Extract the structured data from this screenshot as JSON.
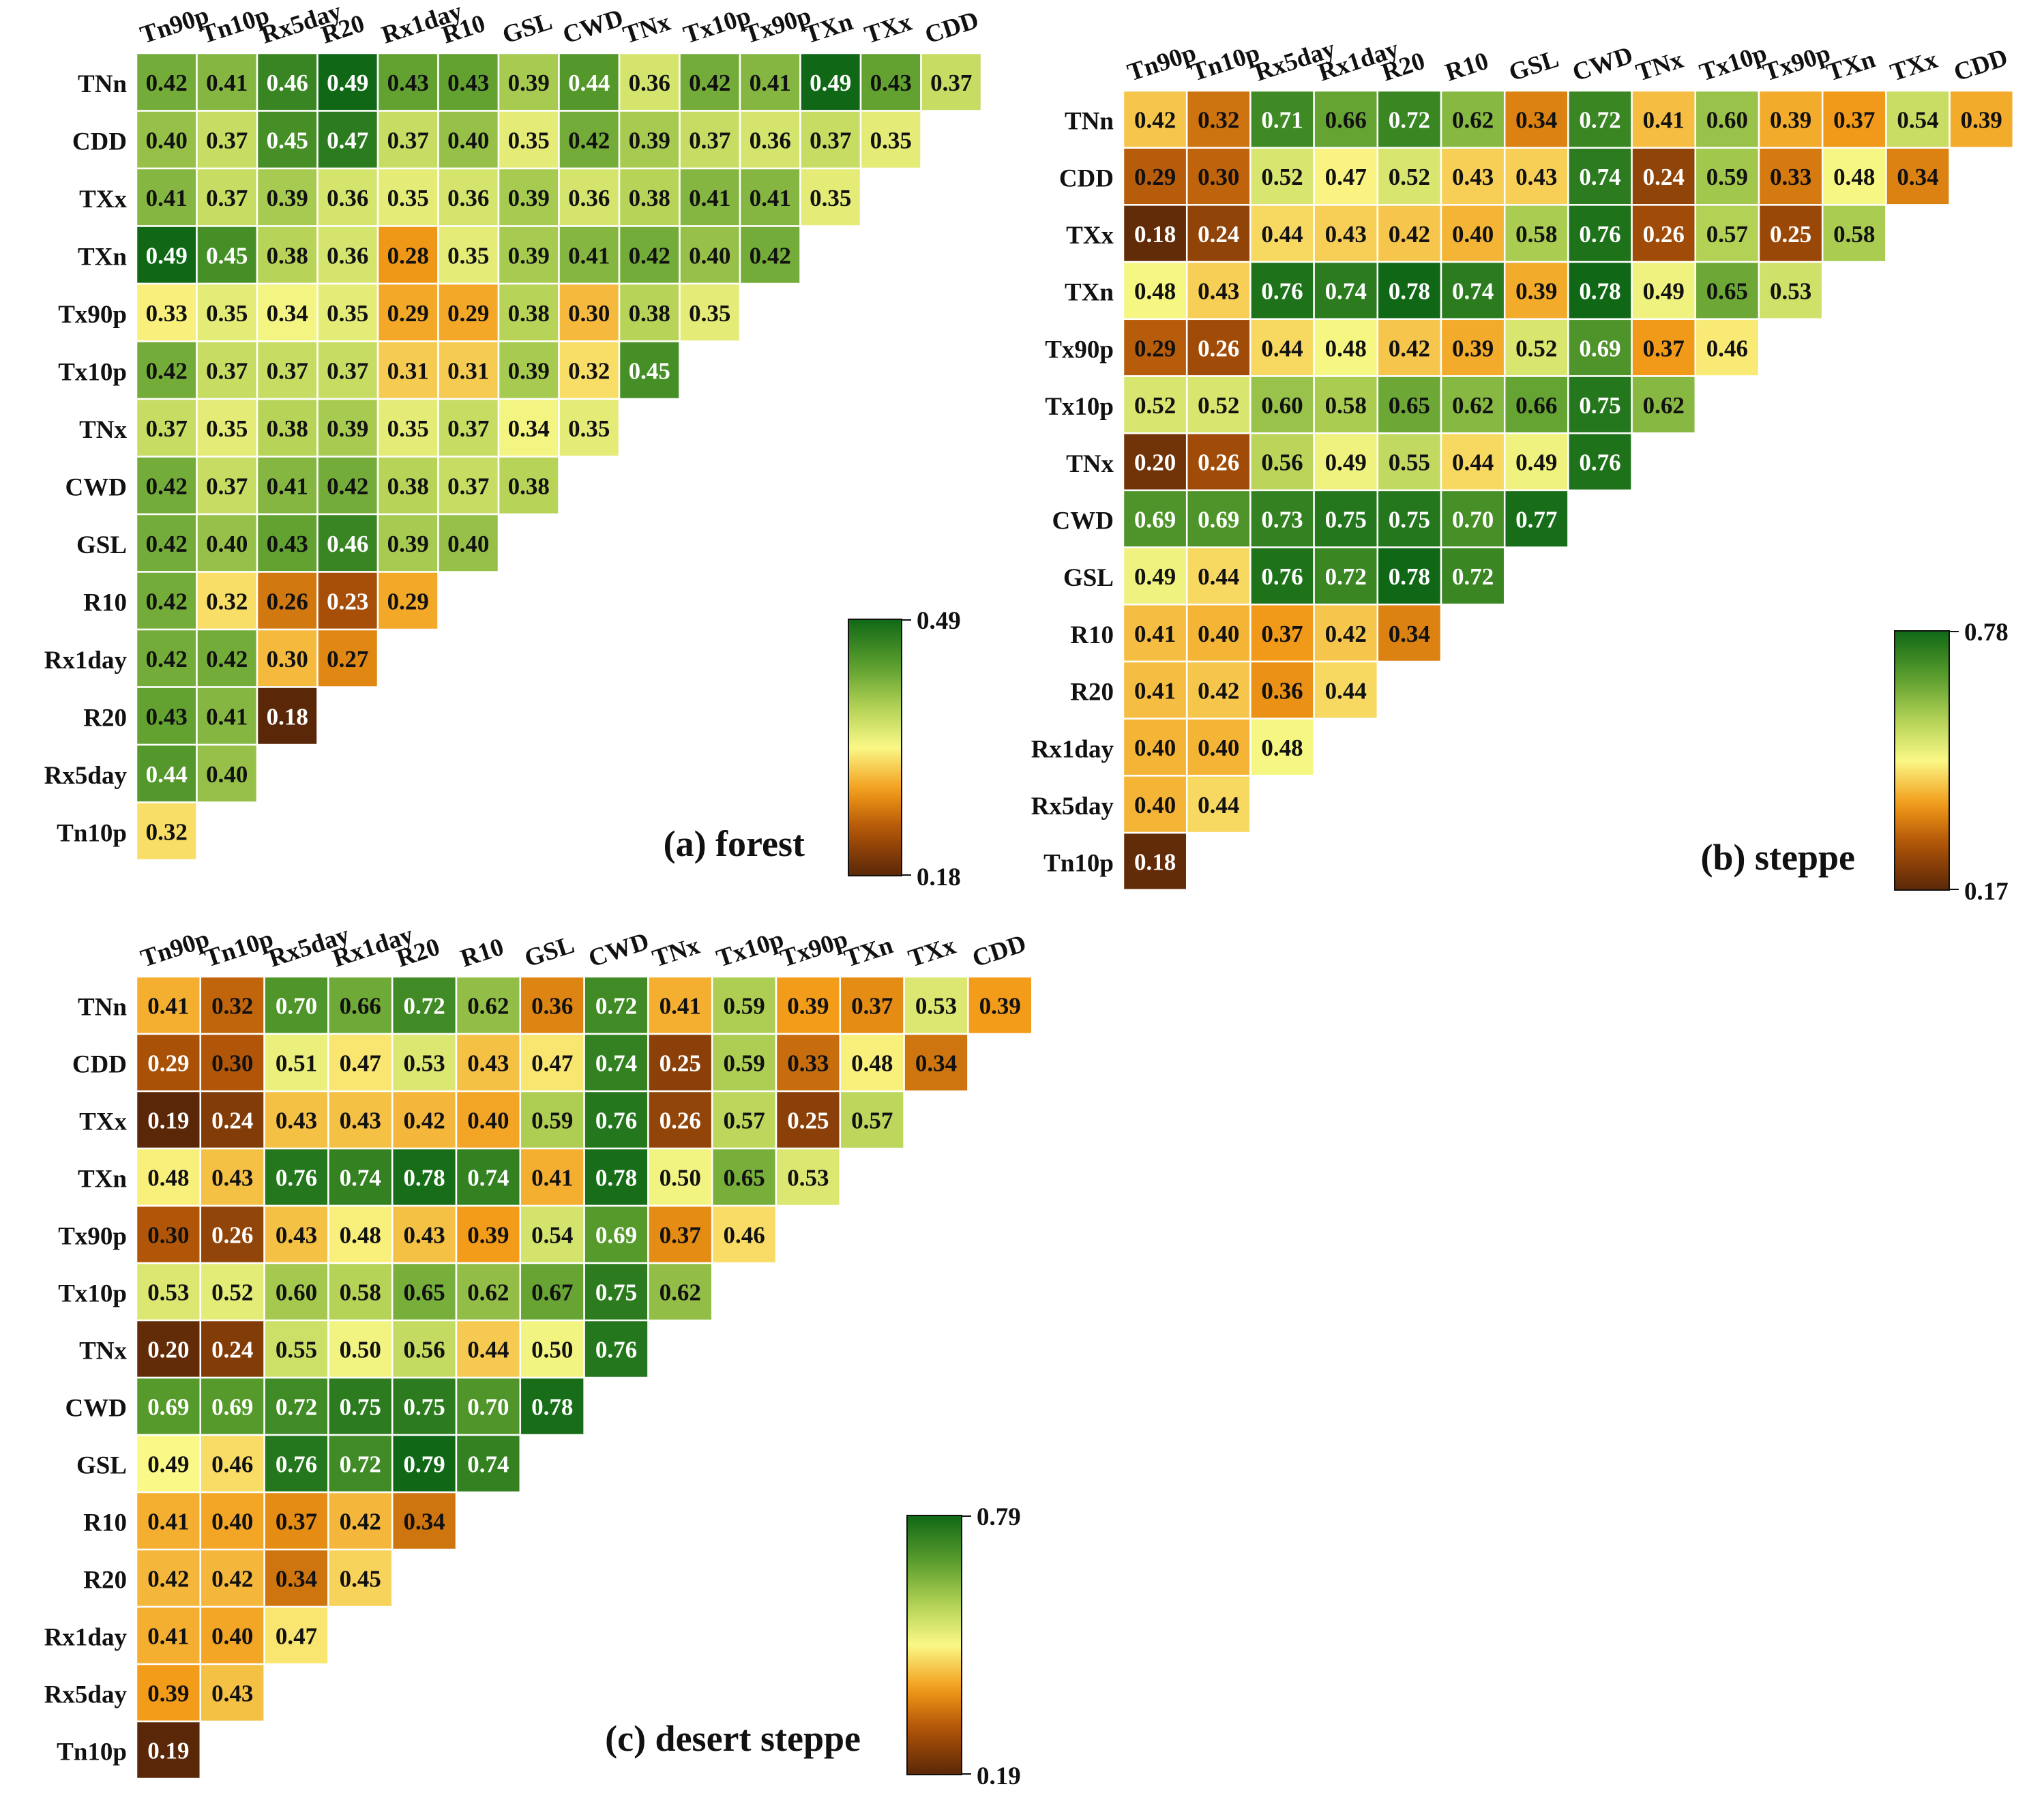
{
  "chart_data": [
    {
      "type": "heatmap",
      "title": "(a) forest",
      "columns": [
        "Tn90p",
        "Tn10p",
        "Rx5day",
        "R20",
        "Rx1day",
        "R10",
        "GSL",
        "CWD",
        "TNx",
        "Tx10p",
        "Tx90p",
        "TXn",
        "TXx",
        "CDD"
      ],
      "rows": [
        "TNn",
        "CDD",
        "TXx",
        "TXn",
        "Tx90p",
        "Tx10p",
        "TNx",
        "CWD",
        "GSL",
        "R10",
        "Rx1day",
        "R20",
        "Rx5day",
        "Tn10p"
      ],
      "values": [
        [
          0.42,
          0.41,
          0.46,
          0.49,
          0.43,
          0.43,
          0.39,
          0.44,
          0.36,
          0.42,
          0.41,
          0.49,
          0.43,
          0.37
        ],
        [
          0.4,
          0.37,
          0.45,
          0.47,
          0.37,
          0.4,
          0.35,
          0.42,
          0.39,
          0.37,
          0.36,
          0.37,
          0.35
        ],
        [
          0.41,
          0.37,
          0.39,
          0.36,
          0.35,
          0.36,
          0.39,
          0.36,
          0.38,
          0.41,
          0.41,
          0.35
        ],
        [
          0.49,
          0.45,
          0.38,
          0.36,
          0.28,
          0.35,
          0.39,
          0.41,
          0.42,
          0.4,
          0.42
        ],
        [
          0.33,
          0.35,
          0.34,
          0.35,
          0.29,
          0.29,
          0.38,
          0.3,
          0.38,
          0.35
        ],
        [
          0.42,
          0.37,
          0.37,
          0.37,
          0.31,
          0.31,
          0.39,
          0.32,
          0.45
        ],
        [
          0.37,
          0.35,
          0.38,
          0.39,
          0.35,
          0.37,
          0.34,
          0.35
        ],
        [
          0.42,
          0.37,
          0.41,
          0.42,
          0.38,
          0.37,
          0.38
        ],
        [
          0.42,
          0.4,
          0.43,
          0.46,
          0.39,
          0.4
        ],
        [
          0.42,
          0.32,
          0.26,
          0.23,
          0.29
        ],
        [
          0.42,
          0.42,
          0.3,
          0.27
        ],
        [
          0.43,
          0.41,
          0.18
        ],
        [
          0.44,
          0.4
        ],
        [
          0.32
        ]
      ],
      "colorbar": {
        "min": 0.18,
        "max": 0.49,
        "min_label": "0.18",
        "max_label": "0.49"
      }
    },
    {
      "type": "heatmap",
      "title": "(b) steppe",
      "columns": [
        "Tn90p",
        "Tn10p",
        "Rx5day",
        "Rx1day",
        "R20",
        "R10",
        "GSL",
        "CWD",
        "TNx",
        "Tx10p",
        "Tx90p",
        "TXn",
        "TXx",
        "CDD"
      ],
      "rows": [
        "TNn",
        "CDD",
        "TXx",
        "TXn",
        "Tx90p",
        "Tx10p",
        "TNx",
        "CWD",
        "GSL",
        "R10",
        "R20",
        "Rx1day",
        "Rx5day",
        "Tn10p"
      ],
      "values": [
        [
          0.42,
          0.32,
          0.71,
          0.66,
          0.72,
          0.62,
          0.34,
          0.72,
          0.41,
          0.6,
          0.39,
          0.37,
          0.54,
          0.39
        ],
        [
          0.29,
          0.3,
          0.52,
          0.47,
          0.52,
          0.43,
          0.43,
          0.74,
          0.24,
          0.59,
          0.33,
          0.48,
          0.34
        ],
        [
          0.18,
          0.24,
          0.44,
          0.43,
          0.42,
          0.4,
          0.58,
          0.76,
          0.26,
          0.57,
          0.25,
          0.58
        ],
        [
          0.48,
          0.43,
          0.76,
          0.74,
          0.78,
          0.74,
          0.39,
          0.78,
          0.49,
          0.65,
          0.53
        ],
        [
          0.29,
          0.26,
          0.44,
          0.48,
          0.42,
          0.39,
          0.52,
          0.69,
          0.37,
          0.46
        ],
        [
          0.52,
          0.52,
          0.6,
          0.58,
          0.65,
          0.62,
          0.66,
          0.75,
          0.62
        ],
        [
          0.2,
          0.26,
          0.56,
          0.49,
          0.55,
          0.44,
          0.49,
          0.76
        ],
        [
          0.69,
          0.69,
          0.73,
          0.75,
          0.75,
          0.7,
          0.77
        ],
        [
          0.49,
          0.44,
          0.76,
          0.72,
          0.78,
          0.72
        ],
        [
          0.41,
          0.4,
          0.37,
          0.42,
          0.34
        ],
        [
          0.41,
          0.42,
          0.36,
          0.44
        ],
        [
          0.4,
          0.4,
          0.48
        ],
        [
          0.4,
          0.44
        ],
        [
          0.18
        ]
      ],
      "colorbar": {
        "min": 0.17,
        "max": 0.78,
        "min_label": "0.17",
        "max_label": "0.78"
      }
    },
    {
      "type": "heatmap",
      "title": "(c) desert steppe",
      "columns": [
        "Tn90p",
        "Tn10p",
        "Rx5day",
        "Rx1day",
        "R20",
        "R10",
        "GSL",
        "CWD",
        "TNx",
        "Tx10p",
        "Tx90p",
        "TXn",
        "TXx",
        "CDD"
      ],
      "rows": [
        "TNn",
        "CDD",
        "TXx",
        "TXn",
        "Tx90p",
        "Tx10p",
        "TNx",
        "CWD",
        "GSL",
        "R10",
        "R20",
        "Rx1day",
        "Rx5day",
        "Tn10p"
      ],
      "values": [
        [
          0.41,
          0.32,
          0.7,
          0.66,
          0.72,
          0.62,
          0.36,
          0.72,
          0.41,
          0.59,
          0.39,
          0.37,
          0.53,
          0.39
        ],
        [
          0.29,
          0.3,
          0.51,
          0.47,
          0.53,
          0.43,
          0.47,
          0.74,
          0.25,
          0.59,
          0.33,
          0.48,
          0.34
        ],
        [
          0.19,
          0.24,
          0.43,
          0.43,
          0.42,
          0.4,
          0.59,
          0.76,
          0.26,
          0.57,
          0.25,
          0.57
        ],
        [
          0.48,
          0.43,
          0.76,
          0.74,
          0.78,
          0.74,
          0.41,
          0.78,
          0.5,
          0.65,
          0.53
        ],
        [
          0.3,
          0.26,
          0.43,
          0.48,
          0.43,
          0.39,
          0.54,
          0.69,
          0.37,
          0.46
        ],
        [
          0.53,
          0.52,
          0.6,
          0.58,
          0.65,
          0.62,
          0.67,
          0.75,
          0.62
        ],
        [
          0.2,
          0.24,
          0.55,
          0.5,
          0.56,
          0.44,
          0.5,
          0.76
        ],
        [
          0.69,
          0.69,
          0.72,
          0.75,
          0.75,
          0.7,
          0.78
        ],
        [
          0.49,
          0.46,
          0.76,
          0.72,
          0.79,
          0.74
        ],
        [
          0.41,
          0.4,
          0.37,
          0.42,
          0.34
        ],
        [
          0.42,
          0.42,
          0.34,
          0.45
        ],
        [
          0.41,
          0.4,
          0.47
        ],
        [
          0.39,
          0.43
        ],
        [
          0.19
        ]
      ],
      "colorbar": {
        "min": 0.19,
        "max": 0.79,
        "min_label": "0.19",
        "max_label": "0.79"
      }
    }
  ]
}
